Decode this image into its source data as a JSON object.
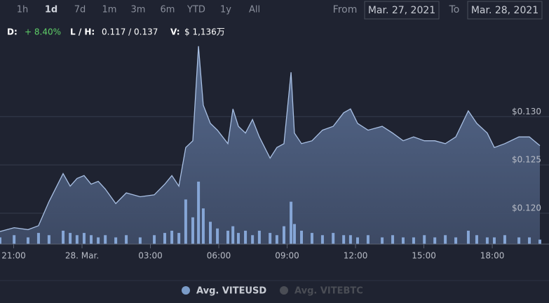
{
  "toolbar": {
    "ranges": [
      "1h",
      "1d",
      "7d",
      "1m",
      "3m",
      "6m",
      "YTD",
      "1y",
      "All"
    ],
    "selected": "1d",
    "from_label": "From",
    "from_value": "Mar. 27, 2021",
    "to_label": "To",
    "to_value": "Mar. 28, 2021"
  },
  "summary": {
    "change_label": "D:",
    "change_value": "+ 8.40%",
    "range_label": "L / H:",
    "range_value": "0.117 / 0.137",
    "volume_label": "V:",
    "volume_value": "$ 1,136万"
  },
  "chart_data": {
    "type": "area",
    "x": [
      20.4,
      21.02,
      21.63,
      22.09,
      22.55,
      23.17,
      23.48,
      23.78,
      24.09,
      24.4,
      24.71,
      25.02,
      25.48,
      25.94,
      26.55,
      27.17,
      27.63,
      27.94,
      28.25,
      28.55,
      28.86,
      29.11,
      29.32,
      29.63,
      29.94,
      30.4,
      30.62,
      30.86,
      31.17,
      31.48,
      31.78,
      32.25,
      32.55,
      32.86,
      33.17,
      33.32,
      33.63,
      34.09,
      34.55,
      35.02,
      35.48,
      35.78,
      36.09,
      36.55,
      37.17,
      37.63,
      38.09,
      38.55,
      39.02,
      39.48,
      39.94,
      40.4,
      40.95,
      41.32,
      41.78,
      42.09,
      42.55,
      43.17,
      43.63,
      44.09
    ],
    "series": [
      {
        "name": "Avg. VITEUSD",
        "color": "#7b9cc8",
        "values": [
          0.1181,
          0.1185,
          0.1183,
          0.1187,
          0.1212,
          0.1241,
          0.1228,
          0.1236,
          0.1239,
          0.123,
          0.1233,
          0.1225,
          0.121,
          0.1221,
          0.1217,
          0.1219,
          0.123,
          0.1239,
          0.1228,
          0.1268,
          0.1275,
          0.1373,
          0.1312,
          0.1293,
          0.1286,
          0.1272,
          0.1308,
          0.129,
          0.1283,
          0.1297,
          0.1279,
          0.1257,
          0.1268,
          0.1272,
          0.1346,
          0.1283,
          0.1272,
          0.1275,
          0.1286,
          0.129,
          0.1304,
          0.1308,
          0.1293,
          0.1286,
          0.129,
          0.1283,
          0.1275,
          0.1279,
          0.1275,
          0.1275,
          0.1272,
          0.1279,
          0.1306,
          0.1293,
          0.1283,
          0.1268,
          0.1272,
          0.1279,
          0.1279,
          0.127
        ]
      }
    ],
    "hidden_series": [
      {
        "name": "Avg. VITEBTC",
        "color": "#4a4d55"
      }
    ],
    "volume": {
      "color": "#86a6d6",
      "values": [
        3,
        4,
        3,
        5,
        4,
        6,
        5,
        4,
        5,
        4,
        3,
        4,
        3,
        4,
        3,
        4,
        5,
        6,
        5,
        20,
        12,
        28,
        16,
        10,
        7,
        6,
        8,
        5,
        6,
        4,
        6,
        5,
        4,
        8,
        19,
        9,
        6,
        5,
        4,
        5,
        4,
        4,
        3,
        4,
        3,
        4,
        3,
        3,
        4,
        3,
        4,
        3,
        6,
        4,
        3,
        3,
        4,
        3,
        3,
        2
      ]
    },
    "y2lim": [
      0,
      100
    ],
    "xlim": [
      20.4,
      44.09
    ],
    "xticks": [
      {
        "value": 21,
        "label": "21:00"
      },
      {
        "value": 24,
        "label": "28. Mar."
      },
      {
        "value": 27,
        "label": "03:00"
      },
      {
        "value": 30,
        "label": "06:00"
      },
      {
        "value": 33,
        "label": "09:00"
      },
      {
        "value": 36,
        "label": "12:00"
      },
      {
        "value": 39,
        "label": "15:00"
      },
      {
        "value": 42,
        "label": "18:00"
      }
    ],
    "ylim": [
      0.1168,
      0.1399
    ],
    "yticks": [
      {
        "value": 0.12,
        "label": "$0.120"
      },
      {
        "value": 0.125,
        "label": "$0.125"
      },
      {
        "value": 0.13,
        "label": "$0.130"
      }
    ],
    "grid": true
  }
}
